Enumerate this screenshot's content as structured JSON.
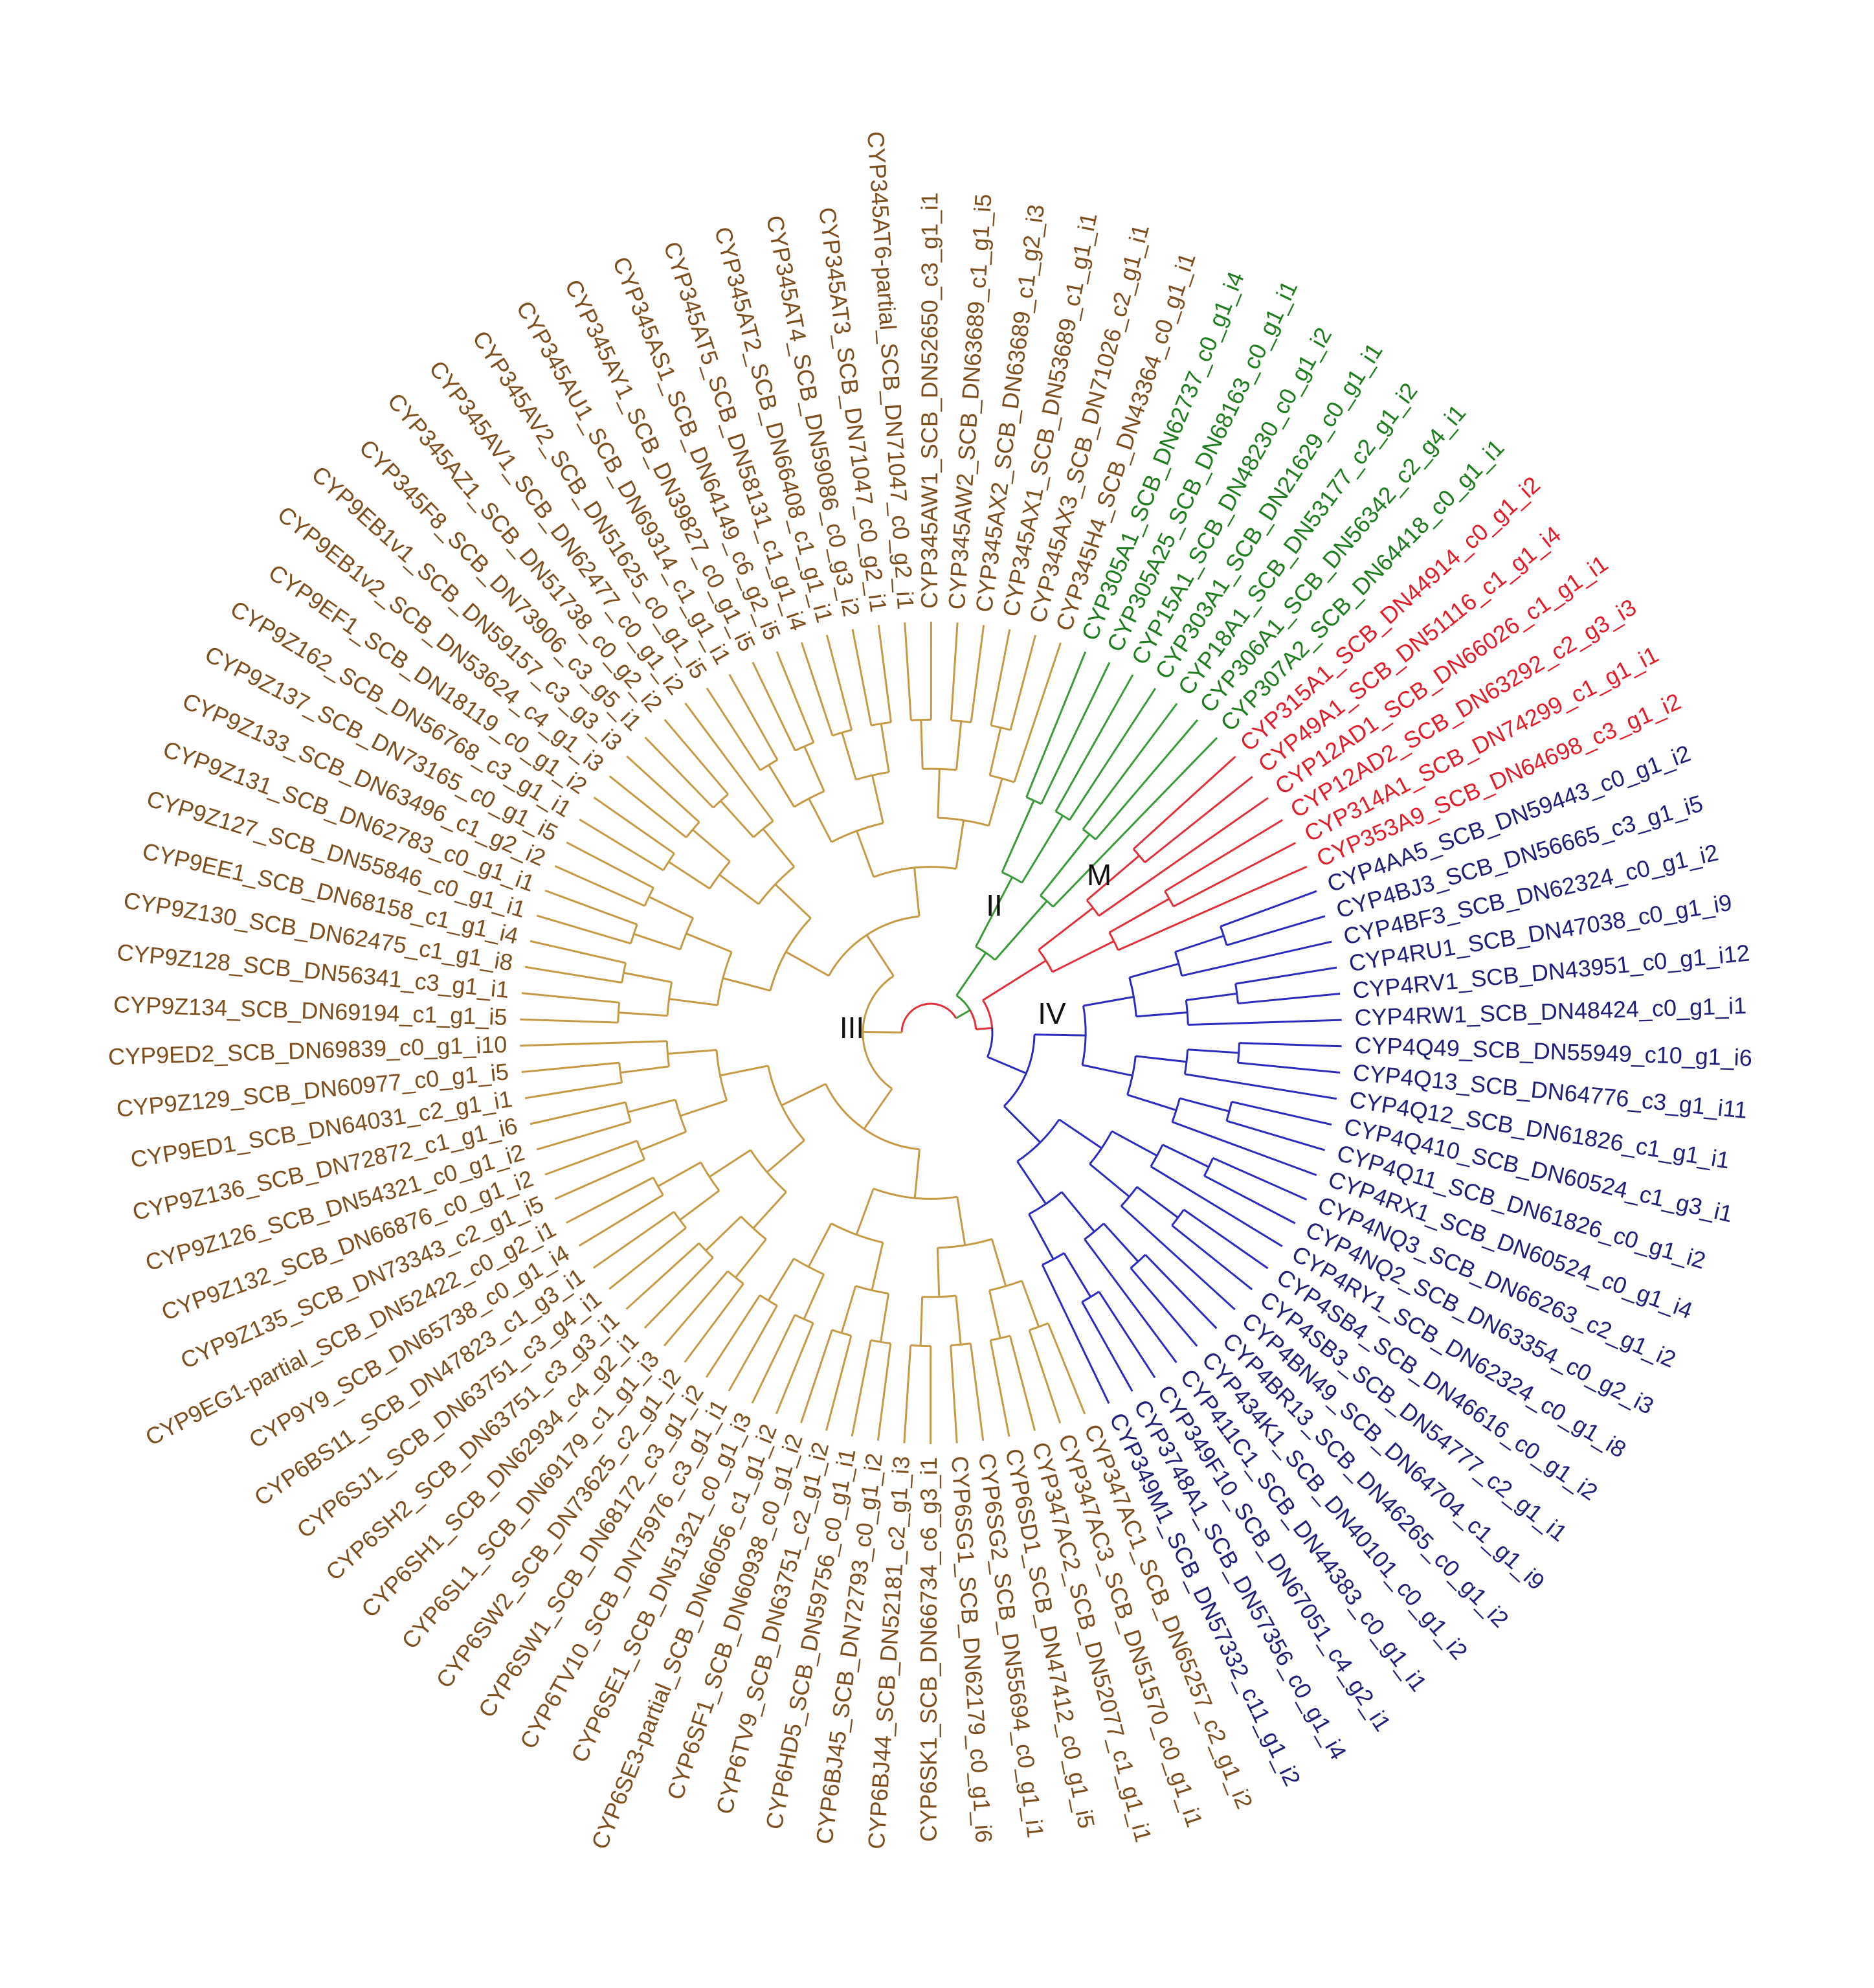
{
  "clades": [
    {
      "name": "III",
      "leaves": [
        "CYP347AC1_SCB_DN65257_c2_g1_i2",
        "CYP347AC3_SCB_DN51570_c0_g1_i1",
        "CYP347AC2_SCB_DN52077_c1_g1_i1",
        "CYP6SD1_SCB_DN47412_c0_g1_i5",
        "CYP6SG2_SCB_DN55694_c0_g1_i1",
        "CYP6SG1_SCB_DN62179_c0_g1_i6",
        "CYP6SK1_SCB_DN66734_c6_g3_i1",
        "CYP6BJ44_SCB_DN52181_c2_g1_i3",
        "CYP6BJ45_SCB_DN72793_c0_g1_i2",
        "CYP6HD5_SCB_DN59756_c0_g1_i1",
        "CYP6TV9_SCB_DN63751_c2_g1_i2",
        "CYP6SF1_SCB_DN60938_c0_g1_i2",
        "CYP6SE3-partial_SCB_DN66056_c1_g1_i2",
        "CYP6SE1_SCB_DN51321_c0_g1_i3",
        "CYP6TV10_SCB_DN75976_c3_g1_i1",
        "CYP6SW1_SCB_DN68172_c3_g1_i2",
        "CYP6SW2_SCB_DN73625_c2_g1_i2",
        "CYP6SL1_SCB_DN69179_c1_g1_i3",
        "CYP6SH1_SCB_DN62934_c4_g2_i1",
        "CYP6SH2_SCB_DN63751_c3_g3_i1",
        "CYP6SJ1_SCB_DN63751_c3_g4_i1",
        "CYP6BS11_SCB_DN47823_c1_g3_i1",
        "CYP9Y9_SCB_DN65738_c0_g1_i4",
        "CYP9EG1-partial_SCB_DN52422_c0_g2_i1",
        "CYP9Z135_SCB_DN73343_c2_g1_i5",
        "CYP9Z132_SCB_DN66876_c0_g1_i2",
        "CYP9Z126_SCB_DN54321_c0_g1_i2",
        "CYP9Z136_SCB_DN72872_c1_g1_i6",
        "CYP9ED1_SCB_DN64031_c2_g1_i1",
        "CYP9Z129_SCB_DN60977_c0_g1_i5",
        "CYP9ED2_SCB_DN69839_c0_g1_i10",
        "CYP9Z134_SCB_DN69194_c1_g1_i5",
        "CYP9Z128_SCB_DN56341_c3_g1_i1",
        "CYP9Z130_SCB_DN62475_c1_g1_i8",
        "CYP9EE1_SCB_DN68158_c1_g1_i4",
        "CYP9Z127_SCB_DN55846_c0_g1_i1",
        "CYP9Z131_SCB_DN62783_c0_g1_i1",
        "CYP9Z133_SCB_DN63496_c1_g2_i2",
        "CYP9Z137_SCB_DN73165_c0_g1_i5",
        "CYP9Z162_SCB_DN56768_c3_g1_i1",
        "CYP9EF1_SCB_DN18119_c0_g1_i2",
        "CYP9EB1v2_SCB_DN53624_c4_g1_i3",
        "CYP9EB1v1_SCB_DN59157_c3_g3_i3",
        "CYP345F8_SCB_DN73906_c3_g5_i1",
        "CYP345AZ1_SCB_DN51738_c0_g2_i2",
        "CYP345AV1_SCB_DN62477_c0_g1_i2",
        "CYP345AV2_SCB_DN51625_c0_g1_i5",
        "CYP345AU1_SCB_DN69314_c1_g1_i1",
        "CYP345AY1_SCB_DN39827_c0_g1_i5",
        "CYP345AS1_SCB_DN64149_c6_g2_i5",
        "CYP345AT5_SCB_DN58131_c1_g1_i4",
        "CYP345AT2_SCB_DN66408_c1_g1_i1",
        "CYP345AT4_SCB_DN59086_c0_g3_i2",
        "CYP345AT3_SCB_DN71047_c0_g2_i1",
        "CYP345AT6-partial_SCB_DN71047_c0_g2_i1",
        "CYP345AW1_SCB_DN52650_c3_g1_i1",
        "CYP345AW2_SCB_DN63689_c1_g1_i5",
        "CYP345AX2_SCB_DN63689_c1_g2_i3",
        "CYP345AX1_SCB_DN53689_c1_g1_i1",
        "CYP345AX3_SCB_DN71026_c2_g1_i1",
        "CYP345H4_SCB_DN43364_c0_g1_i1"
      ]
    },
    {
      "name": "II",
      "leaves": [
        "CYP305A1_SCB_DN62737_c0_g1_i4",
        "CYP305A25_SCB_DN68163_c0_g1_i1",
        "CYP15A1_SCB_DN48230_c0_g1_i2",
        "CYP303A1_SCB_DN21629_c0_g1_i1",
        "CYP18A1_SCB_DN53177_c2_g1_i2",
        "CYP306A1_SCB_DN56342_c2_g4_i1",
        "CYP307A2_SCB_DN64418_c0_g1_i1"
      ]
    },
    {
      "name": "M",
      "leaves": [
        "CYP315A1_SCB_DN44914_c0_g1_i2",
        "CYP49A1_SCB_DN51116_c1_g1_i4",
        "CYP12AD1_SCB_DN66026_c1_g1_i1",
        "CYP12AD2_SCB_DN63292_c2_g3_i3",
        "CYP314A1_SCB_DN74299_c1_g1_i1",
        "CYP353A9_SCB_DN64698_c3_g1_i2"
      ]
    },
    {
      "name": "IV",
      "leaves": [
        "CYP4AA5_SCB_DN59443_c0_g1_i2",
        "CYP4BJ3_SCB_DN56665_c3_g1_i5",
        "CYP4BF3_SCB_DN62324_c0_g1_i2",
        "CYP4RU1_SCB_DN47038_c0_g1_i9",
        "CYP4RV1_SCB_DN43951_c0_g1_i12",
        "CYP4RW1_SCB_DN48424_c0_g1_i1",
        "CYP4Q49_SCB_DN55949_c10_g1_i6",
        "CYP4Q13_SCB_DN64776_c3_g1_i11",
        "CYP4Q12_SCB_DN61826_c1_g1_i1",
        "CYP4Q410_SCB_DN60524_c1_g3_i1",
        "CYP4Q11_SCB_DN61826_c0_g1_i2",
        "CYP4RX1_SCB_DN60524_c0_g1_i4",
        "CYP4NQ3_SCB_DN66263_c2_g1_i2",
        "CYP4NQ2_SCB_DN63354_c0_g2_i3",
        "CYP4RY1_SCB_DN62324_c0_g1_i8",
        "CYP4SB4_SCB_DN46616_c0_g1_i2",
        "CYP4SB3_SCB_DN54777_c2_g1_i1",
        "CYP4BN49_SCB_DN64704_c1_g1_i9",
        "CYP4BR13_SCB_DN46265_c0_g1_i2",
        "CYP434K1_SCB_DN40101_c0_g1_i2",
        "CYP411C1_SCB_DN44383_c0_g1_i1",
        "CYP349F10_SCB_DN67051_c4_g2_i1",
        "CYP3748A1_SCB_DN57356_c0_g1_i4",
        "CYP349M1_SCB_DN57332_c11_g1_i2"
      ]
    }
  ]
}
